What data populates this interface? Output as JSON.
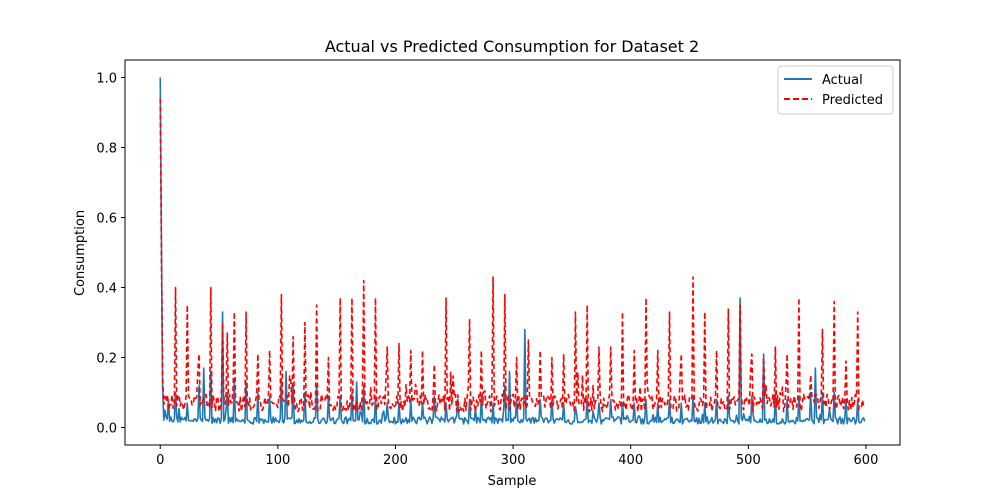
{
  "chart_data": {
    "type": "line",
    "title": "Actual vs Predicted Consumption for Dataset 2",
    "xlabel": "Sample",
    "ylabel": "Consumption",
    "xlim": [
      -29.95,
      628.95
    ],
    "ylim": [
      -0.05,
      1.05
    ],
    "xticks": [
      0,
      100,
      200,
      300,
      400,
      500,
      600
    ],
    "yticks": [
      0.0,
      0.2,
      0.4,
      0.6,
      0.8,
      1.0
    ],
    "xtick_labels": [
      "0",
      "100",
      "200",
      "300",
      "400",
      "500",
      "600"
    ],
    "ytick_labels": [
      "0.0",
      "0.2",
      "0.4",
      "0.6",
      "0.8",
      "1.0"
    ],
    "grid": false,
    "legend_position": "top-right",
    "n_points": 600,
    "series": [
      {
        "name": "Actual",
        "color": "#1f77b4",
        "style": "solid",
        "base": 0.02,
        "noise": 0.02,
        "peaks": [
          [
            0,
            1.0
          ],
          [
            1,
            0.55
          ],
          [
            2,
            0.12
          ],
          [
            7,
            0.08
          ],
          [
            13,
            0.1
          ],
          [
            23,
            0.07
          ],
          [
            33,
            0.12
          ],
          [
            37,
            0.17
          ],
          [
            43,
            0.16
          ],
          [
            53,
            0.33
          ],
          [
            57,
            0.1
          ],
          [
            63,
            0.14
          ],
          [
            73,
            0.13
          ],
          [
            83,
            0.1
          ],
          [
            93,
            0.09
          ],
          [
            103,
            0.14
          ],
          [
            107,
            0.16
          ],
          [
            113,
            0.12
          ],
          [
            123,
            0.1
          ],
          [
            133,
            0.12
          ],
          [
            143,
            0.09
          ],
          [
            153,
            0.09
          ],
          [
            163,
            0.1
          ],
          [
            167,
            0.13
          ],
          [
            173,
            0.12
          ],
          [
            183,
            0.09
          ],
          [
            193,
            0.07
          ],
          [
            203,
            0.07
          ],
          [
            213,
            0.08
          ],
          [
            223,
            0.07
          ],
          [
            233,
            0.09
          ],
          [
            243,
            0.07
          ],
          [
            253,
            0.08
          ],
          [
            263,
            0.08
          ],
          [
            273,
            0.09
          ],
          [
            283,
            0.07
          ],
          [
            293,
            0.12
          ],
          [
            297,
            0.16
          ],
          [
            303,
            0.08
          ],
          [
            310,
            0.28
          ],
          [
            323,
            0.08
          ],
          [
            333,
            0.08
          ],
          [
            343,
            0.07
          ],
          [
            353,
            0.06
          ],
          [
            363,
            0.08
          ],
          [
            373,
            0.07
          ],
          [
            383,
            0.08
          ],
          [
            393,
            0.07
          ],
          [
            403,
            0.07
          ],
          [
            413,
            0.08
          ],
          [
            423,
            0.07
          ],
          [
            433,
            0.08
          ],
          [
            443,
            0.07
          ],
          [
            453,
            0.09
          ],
          [
            463,
            0.07
          ],
          [
            473,
            0.08
          ],
          [
            483,
            0.09
          ],
          [
            493,
            0.37
          ],
          [
            503,
            0.09
          ],
          [
            513,
            0.21
          ],
          [
            523,
            0.1
          ],
          [
            533,
            0.08
          ],
          [
            543,
            0.09
          ],
          [
            553,
            0.1
          ],
          [
            557,
            0.17
          ],
          [
            563,
            0.1
          ],
          [
            573,
            0.1
          ],
          [
            583,
            0.08
          ],
          [
            593,
            0.08
          ]
        ]
      },
      {
        "name": "Predicted",
        "color": "#ff0000",
        "style": "dashed",
        "base": 0.07,
        "noise": 0.05,
        "peaks": [
          [
            0,
            0.94
          ],
          [
            1,
            0.5
          ],
          [
            2,
            0.15
          ],
          [
            13,
            0.4
          ],
          [
            23,
            0.35
          ],
          [
            33,
            0.21
          ],
          [
            43,
            0.4
          ],
          [
            53,
            0.3
          ],
          [
            57,
            0.27
          ],
          [
            63,
            0.33
          ],
          [
            73,
            0.33
          ],
          [
            83,
            0.21
          ],
          [
            93,
            0.22
          ],
          [
            103,
            0.38
          ],
          [
            113,
            0.26
          ],
          [
            123,
            0.3
          ],
          [
            133,
            0.35
          ],
          [
            143,
            0.2
          ],
          [
            153,
            0.37
          ],
          [
            163,
            0.37
          ],
          [
            173,
            0.42
          ],
          [
            183,
            0.37
          ],
          [
            193,
            0.23
          ],
          [
            203,
            0.24
          ],
          [
            213,
            0.22
          ],
          [
            223,
            0.22
          ],
          [
            233,
            0.18
          ],
          [
            243,
            0.37
          ],
          [
            263,
            0.31
          ],
          [
            273,
            0.22
          ],
          [
            283,
            0.43
          ],
          [
            293,
            0.38
          ],
          [
            303,
            0.2
          ],
          [
            313,
            0.25
          ],
          [
            323,
            0.22
          ],
          [
            333,
            0.2
          ],
          [
            343,
            0.21
          ],
          [
            353,
            0.33
          ],
          [
            363,
            0.35
          ],
          [
            373,
            0.23
          ],
          [
            383,
            0.23
          ],
          [
            393,
            0.33
          ],
          [
            403,
            0.22
          ],
          [
            413,
            0.37
          ],
          [
            423,
            0.22
          ],
          [
            433,
            0.33
          ],
          [
            443,
            0.21
          ],
          [
            453,
            0.43
          ],
          [
            463,
            0.33
          ],
          [
            473,
            0.22
          ],
          [
            483,
            0.34
          ],
          [
            493,
            0.35
          ],
          [
            503,
            0.21
          ],
          [
            513,
            0.2
          ],
          [
            523,
            0.23
          ],
          [
            533,
            0.21
          ],
          [
            543,
            0.37
          ],
          [
            553,
            0.15
          ],
          [
            563,
            0.28
          ],
          [
            573,
            0.36
          ],
          [
            583,
            0.19
          ],
          [
            593,
            0.33
          ]
        ]
      }
    ]
  }
}
